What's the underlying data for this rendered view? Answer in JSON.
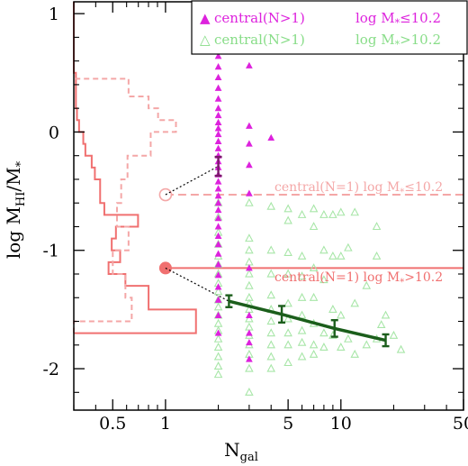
{
  "chart_data": {
    "type": "scatter",
    "x_scale": "log",
    "xlim": [
      0.3,
      50
    ],
    "ylim": [
      -2.35,
      1.1
    ],
    "x_ticks": [
      0.5,
      1,
      5,
      10,
      50
    ],
    "x_tick_labels": [
      "0.5",
      "1",
      "5",
      "10",
      "50"
    ],
    "y_ticks": [
      -2,
      -1,
      0,
      1
    ],
    "y_tick_labels": [
      "-2",
      "-1",
      "0",
      "1"
    ],
    "xlabel_main": "N",
    "xlabel_sub": "gal",
    "ylabel_main": "log M",
    "ylabel_sub": "HI",
    "ylabel_mid": "/M",
    "ylabel_sub2": "*",
    "colors": {
      "magenta": "#dd22dd",
      "light_green": "#a8e6a8",
      "dark_green": "#1b5e1b",
      "salmon": "#f07070",
      "light_salmon": "#f4a7a7",
      "text_green": "#88dd88"
    },
    "legend": [
      {
        "marker": "▲",
        "label": "central(N>1)",
        "mass_label": "log M",
        "mass_sub": "*",
        "mass_rel": "≤10.2",
        "color": "#dd22dd"
      },
      {
        "marker": "△",
        "label": "central(N>1)",
        "mass_label": "log M",
        "mass_sub": "*",
        "mass_rel": ">10.2",
        "color": "#88dd88"
      }
    ],
    "ref_lines": [
      {
        "label": "central(N=1) log M",
        "sub": "*",
        "rel": "≤10.2",
        "y": -0.53,
        "color": "#f4a7a7",
        "style": "dashed",
        "marker": "open-circle"
      },
      {
        "label": "central(N=1) log M",
        "sub": "*",
        "rel": ">10.2",
        "y": -1.15,
        "color": "#f07070",
        "style": "solid",
        "marker": "filled-circle"
      }
    ],
    "series": [
      {
        "marker": "filled-triangle",
        "color": "#dd22dd",
        "points": [
          [
            2,
            0.64
          ],
          [
            2,
            0.55
          ],
          [
            2,
            0.46
          ],
          [
            2,
            0.37
          ],
          [
            2,
            0.28
          ],
          [
            2,
            0.2
          ],
          [
            2,
            0.14
          ],
          [
            2,
            0.08
          ],
          [
            2,
            0.03
          ],
          [
            2,
            -0.02
          ],
          [
            2,
            -0.08
          ],
          [
            2,
            -0.14
          ],
          [
            2,
            -0.2
          ],
          [
            2,
            -0.25
          ],
          [
            2,
            -0.3
          ],
          [
            2,
            -0.36
          ],
          [
            2,
            -0.42
          ],
          [
            2,
            -0.48
          ],
          [
            2,
            -0.54
          ],
          [
            2,
            -0.6
          ],
          [
            2,
            -0.66
          ],
          [
            2,
            -0.73
          ],
          [
            2,
            -0.8
          ],
          [
            2,
            -0.88
          ],
          [
            2,
            -0.95
          ],
          [
            2,
            -1.03
          ],
          [
            2,
            -1.12
          ],
          [
            2,
            -1.21
          ],
          [
            2,
            -1.31
          ],
          [
            2,
            -1.42
          ],
          [
            2,
            -1.55
          ],
          [
            2,
            -1.7
          ],
          [
            3,
            0.56
          ],
          [
            3,
            0.05
          ],
          [
            3,
            -0.1
          ],
          [
            3,
            -0.28
          ],
          [
            3,
            -0.52
          ],
          [
            3,
            -1.15
          ],
          [
            3,
            -1.55
          ],
          [
            3,
            -1.7
          ],
          [
            3,
            -1.78
          ],
          [
            3,
            -1.92
          ],
          [
            4,
            -0.05
          ]
        ]
      },
      {
        "marker": "open-triangle",
        "color": "#a8e6a8",
        "points": [
          [
            2,
            -0.6
          ],
          [
            2,
            -0.72
          ],
          [
            2,
            -0.85
          ],
          [
            2,
            -0.95
          ],
          [
            2,
            -1.05
          ],
          [
            2,
            -1.12
          ],
          [
            2,
            -1.2
          ],
          [
            2,
            -1.28
          ],
          [
            2,
            -1.35
          ],
          [
            2,
            -1.42
          ],
          [
            2,
            -1.48
          ],
          [
            2,
            -1.55
          ],
          [
            2,
            -1.62
          ],
          [
            2,
            -1.68
          ],
          [
            2,
            -1.75
          ],
          [
            2,
            -1.82
          ],
          [
            2,
            -1.9
          ],
          [
            2,
            -1.98
          ],
          [
            2,
            -2.05
          ],
          [
            3,
            -0.6
          ],
          [
            3,
            -0.9
          ],
          [
            3,
            -1.0
          ],
          [
            3,
            -1.1
          ],
          [
            3,
            -1.2
          ],
          [
            3,
            -1.3
          ],
          [
            3,
            -1.4
          ],
          [
            3,
            -1.45
          ],
          [
            3,
            -1.5
          ],
          [
            3,
            -1.58
          ],
          [
            3,
            -1.65
          ],
          [
            3,
            -1.72
          ],
          [
            3,
            -1.8
          ],
          [
            3,
            -1.88
          ],
          [
            3,
            -2.0
          ],
          [
            3,
            -2.2
          ],
          [
            4,
            -0.63
          ],
          [
            4,
            -1.0
          ],
          [
            4,
            -1.2
          ],
          [
            4,
            -1.38
          ],
          [
            4,
            -1.5
          ],
          [
            4,
            -1.6
          ],
          [
            4,
            -1.7
          ],
          [
            4,
            -1.8
          ],
          [
            4,
            -1.9
          ],
          [
            4,
            -2.0
          ],
          [
            5,
            -0.65
          ],
          [
            5,
            -0.75
          ],
          [
            5,
            -1.02
          ],
          [
            5,
            -1.2
          ],
          [
            5,
            -1.45
          ],
          [
            5,
            -1.58
          ],
          [
            5,
            -1.7
          ],
          [
            5,
            -1.8
          ],
          [
            5,
            -1.95
          ],
          [
            6,
            -0.7
          ],
          [
            6,
            -1.05
          ],
          [
            6,
            -1.22
          ],
          [
            6,
            -1.4
          ],
          [
            6,
            -1.55
          ],
          [
            6,
            -1.68
          ],
          [
            6,
            -1.78
          ],
          [
            6,
            -1.9
          ],
          [
            7,
            -0.65
          ],
          [
            7,
            -0.8
          ],
          [
            7,
            -1.15
          ],
          [
            7,
            -1.4
          ],
          [
            7,
            -1.62
          ],
          [
            7,
            -1.8
          ],
          [
            7,
            -1.88
          ],
          [
            8,
            -0.7
          ],
          [
            8,
            -1.0
          ],
          [
            8,
            -1.25
          ],
          [
            8,
            -1.7
          ],
          [
            8,
            -1.82
          ],
          [
            9,
            -0.7
          ],
          [
            9,
            -1.05
          ],
          [
            9,
            -1.5
          ],
          [
            9,
            -1.72
          ],
          [
            10,
            -0.68
          ],
          [
            10,
            -1.05
          ],
          [
            10,
            -1.55
          ],
          [
            10,
            -1.82
          ],
          [
            11,
            -0.98
          ],
          [
            11,
            -1.75
          ],
          [
            12,
            -0.68
          ],
          [
            12,
            -1.45
          ],
          [
            12,
            -1.88
          ],
          [
            14,
            -1.3
          ],
          [
            14,
            -1.8
          ],
          [
            16,
            -0.8
          ],
          [
            16,
            -1.05
          ],
          [
            16,
            -1.75
          ],
          [
            17,
            -1.63
          ],
          [
            18,
            -1.55
          ],
          [
            20,
            -1.72
          ],
          [
            22,
            -1.84
          ]
        ]
      }
    ],
    "trend": {
      "color": "#1b5e1b",
      "points": [
        {
          "x": 2.3,
          "y": -1.43,
          "err": 0.05
        },
        {
          "x": 4.6,
          "y": -1.54,
          "err": 0.07
        },
        {
          "x": 9.2,
          "y": -1.66,
          "err": 0.07
        },
        {
          "x": 18,
          "y": -1.76,
          "err": 0.05
        }
      ]
    },
    "magenta_errorbar": {
      "x": 2,
      "y": -0.29,
      "err": 0.08
    },
    "connectors": [
      {
        "from": [
          1,
          -0.53
        ],
        "to": [
          2,
          -0.29
        ]
      },
      {
        "from": [
          1,
          -1.15
        ],
        "to": [
          2.3,
          -1.43
        ]
      }
    ],
    "histograms": [
      {
        "style": "solid",
        "color": "#f07070",
        "bin_edges": [
          -1.7,
          -1.5,
          -1.3,
          -1.2,
          -1.1,
          -1.0,
          -0.9,
          -0.8,
          -0.7,
          -0.6,
          -0.5,
          -0.4,
          -0.3,
          -0.2,
          -0.1,
          0,
          0.1,
          0.2,
          0.5,
          1.1
        ],
        "counts": [
          11.6,
          7.1,
          4.9,
          3.3,
          4.4,
          3.6,
          4.0,
          6.1,
          2.9,
          2.5,
          2.5,
          2.0,
          1.7,
          1.1,
          0.9,
          0.5,
          0.3,
          0.2,
          0
        ]
      },
      {
        "style": "dashed",
        "color": "#f4a7a7",
        "bin_edges": [
          -1.7,
          -1.6,
          -1.4,
          -1.2,
          -1.0,
          -0.8,
          -0.6,
          -0.4,
          -0.2,
          0,
          0.1,
          0.2,
          0.3,
          0.45
        ],
        "counts": [
          0,
          5.5,
          4.9,
          3.7,
          5.2,
          4.1,
          4.5,
          5.1,
          7.3,
          9.7,
          8.0,
          7.1,
          5.2,
          0
        ]
      }
    ],
    "hist_count_max": 37
  }
}
